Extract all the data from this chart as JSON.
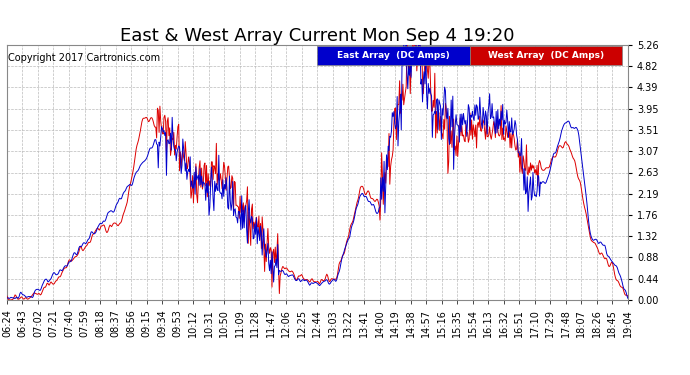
{
  "title": "East & West Array Current Mon Sep 4 19:20",
  "copyright": "Copyright 2017 Cartronics.com",
  "legend_east": "East Array  (DC Amps)",
  "legend_west": "West Array  (DC Amps)",
  "east_color": "#0000cc",
  "west_color": "#dd0000",
  "legend_east_bg": "#0000cc",
  "legend_west_bg": "#cc0000",
  "yticks": [
    0.0,
    0.44,
    0.88,
    1.32,
    1.76,
    2.19,
    2.63,
    3.07,
    3.51,
    3.95,
    4.39,
    4.82,
    5.26
  ],
  "ymax": 5.26,
  "ymin": 0.0,
  "background_color": "#ffffff",
  "plot_bg_color": "#ffffff",
  "grid_color": "#bbbbbb",
  "xtick_labels": [
    "06:24",
    "06:43",
    "07:02",
    "07:21",
    "07:40",
    "07:59",
    "08:18",
    "08:37",
    "08:56",
    "09:15",
    "09:34",
    "09:53",
    "10:12",
    "10:31",
    "10:50",
    "11:09",
    "11:28",
    "11:47",
    "12:06",
    "12:25",
    "12:44",
    "13:03",
    "13:22",
    "13:41",
    "14:00",
    "14:19",
    "14:38",
    "14:57",
    "15:16",
    "15:35",
    "15:54",
    "16:13",
    "16:32",
    "16:51",
    "17:10",
    "17:29",
    "17:48",
    "18:07",
    "18:26",
    "18:45",
    "19:04"
  ],
  "title_fontsize": 13,
  "axis_fontsize": 7,
  "copyright_fontsize": 7
}
